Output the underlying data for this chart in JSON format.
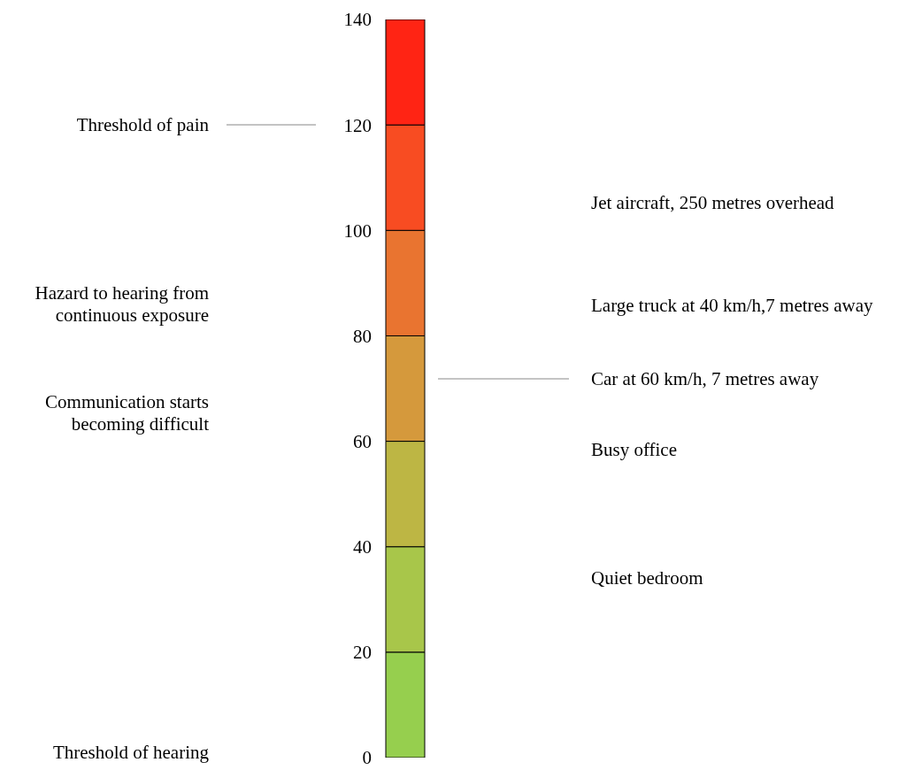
{
  "chart_data": {
    "type": "bar",
    "stacked": true,
    "categories": [
      null
    ],
    "series": [
      {
        "color": "#96cf4e",
        "values": [
          20
        ]
      },
      {
        "color": "#a8c64a",
        "values": [
          20
        ]
      },
      {
        "color": "#bdb644",
        "values": [
          20
        ]
      },
      {
        "color": "#d5993c",
        "values": [
          20
        ]
      },
      {
        "color": "#e97430",
        "values": [
          20
        ]
      },
      {
        "color": "#f84c22",
        "values": [
          20
        ]
      },
      {
        "color": "#ff2414",
        "values": [
          20
        ]
      }
    ],
    "ylim": [
      0,
      140
    ],
    "yticks": [
      0,
      20,
      40,
      60,
      80,
      100,
      120,
      140
    ],
    "annotations": [
      "Threshold of pain",
      "Hazard to hearing from continuous exposure",
      "Communication starts becoming difficult",
      "Threshold of hearing",
      "Jet aircraft, 250 metres overhead",
      "Large truck at 40 km/h,7 metres away",
      "Car at 60 km/h, 7 metres away",
      "Busy office",
      "Quiet bedroom"
    ]
  }
}
